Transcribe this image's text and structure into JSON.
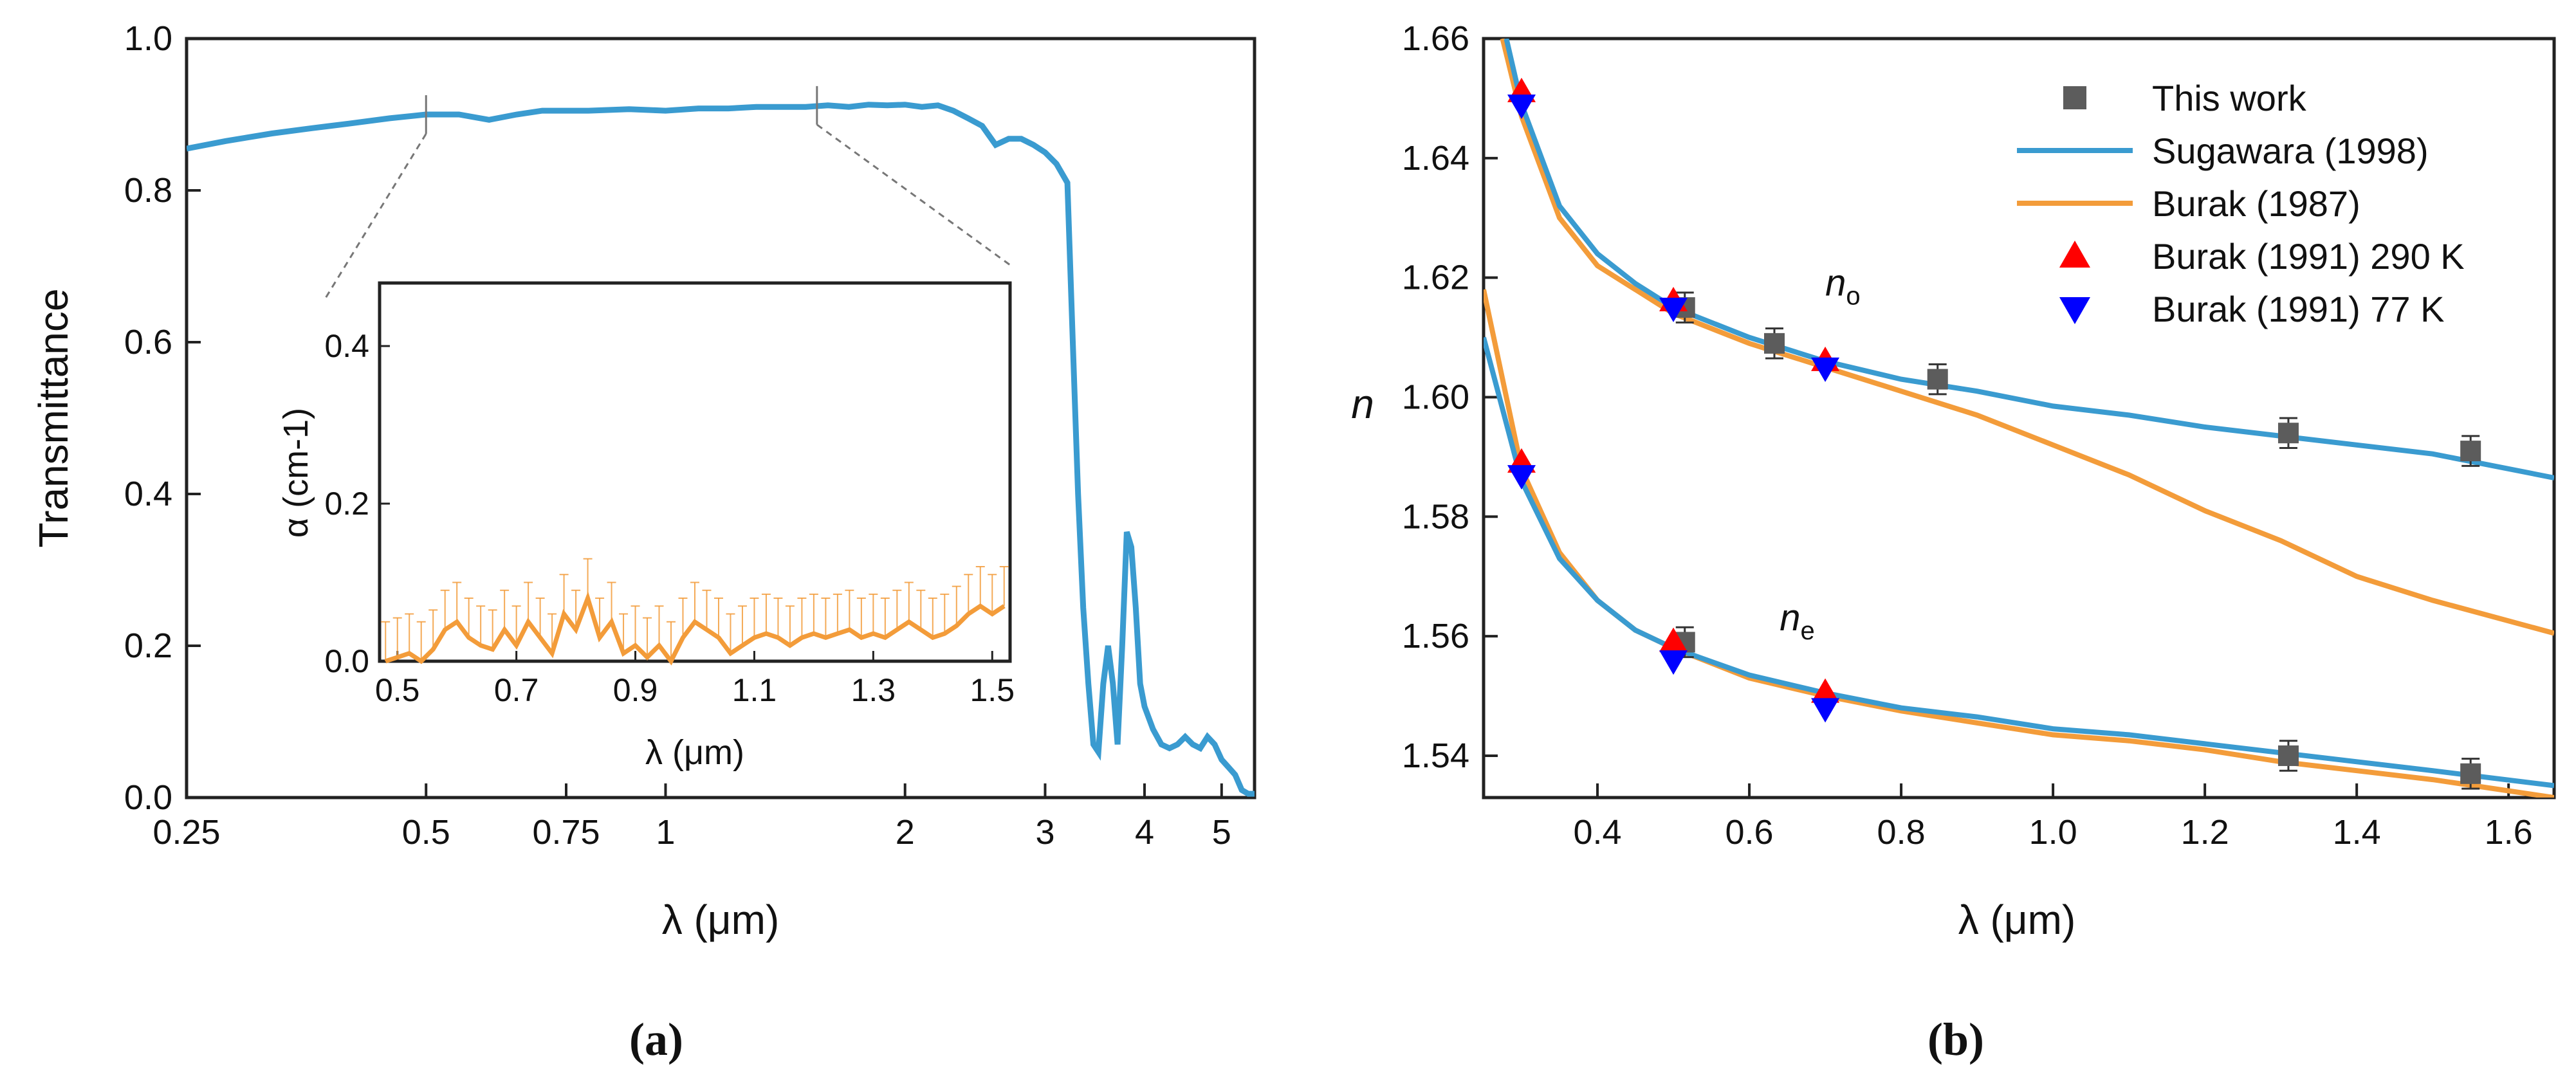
{
  "chart_data": [
    {
      "panel_label": "(a)",
      "type": "line",
      "title": "",
      "xlabel": "λ (μm)",
      "ylabel": "Transmittance",
      "xscale": "log",
      "xlim": [
        0.25,
        5.5
      ],
      "ylim": [
        0,
        1.0
      ],
      "xticks": [
        0.25,
        0.5,
        0.75,
        1,
        2,
        3,
        4,
        5
      ],
      "xtick_labels": [
        "0.25",
        "0.5",
        "0.75",
        "1",
        "2",
        "3",
        "4",
        "5"
      ],
      "yticks": [
        0.0,
        0.2,
        0.4,
        0.6,
        0.8,
        1.0
      ],
      "ytick_labels": [
        "0.0",
        "0.2",
        "0.4",
        "0.6",
        "0.8",
        "1.0"
      ],
      "colors": {
        "line": "#3a9bd0",
        "inset": "#f39c3a"
      },
      "series": [
        {
          "name": "Transmittance",
          "x": [
            0.25,
            0.28,
            0.32,
            0.36,
            0.4,
            0.45,
            0.5,
            0.55,
            0.6,
            0.65,
            0.7,
            0.75,
            0.8,
            0.9,
            1.0,
            1.1,
            1.2,
            1.3,
            1.4,
            1.5,
            1.6,
            1.7,
            1.8,
            1.9,
            2.0,
            2.1,
            2.2,
            2.3,
            2.4,
            2.5,
            2.6,
            2.7,
            2.8,
            2.9,
            3.0,
            3.1,
            3.2,
            3.25,
            3.3,
            3.35,
            3.4,
            3.45,
            3.5,
            3.55,
            3.6,
            3.65,
            3.7,
            3.75,
            3.8,
            3.85,
            3.9,
            3.95,
            4.0,
            4.1,
            4.2,
            4.3,
            4.4,
            4.5,
            4.6,
            4.7,
            4.8,
            4.9,
            5.0,
            5.1,
            5.2,
            5.3,
            5.4,
            5.5
          ],
          "y": [
            0.855,
            0.865,
            0.875,
            0.882,
            0.888,
            0.895,
            0.9,
            0.9,
            0.893,
            0.9,
            0.905,
            0.905,
            0.905,
            0.907,
            0.905,
            0.908,
            0.908,
            0.91,
            0.91,
            0.91,
            0.912,
            0.91,
            0.913,
            0.912,
            0.913,
            0.91,
            0.912,
            0.905,
            0.895,
            0.885,
            0.86,
            0.868,
            0.868,
            0.86,
            0.85,
            0.835,
            0.81,
            0.6,
            0.4,
            0.25,
            0.15,
            0.07,
            0.06,
            0.15,
            0.2,
            0.15,
            0.07,
            0.2,
            0.35,
            0.33,
            0.25,
            0.15,
            0.12,
            0.09,
            0.07,
            0.065,
            0.07,
            0.08,
            0.07,
            0.065,
            0.08,
            0.07,
            0.05,
            0.04,
            0.03,
            0.01,
            0.005,
            0.005
          ]
        }
      ],
      "annotations": [
        {
          "type": "marker",
          "x": 0.5
        },
        {
          "type": "marker",
          "x": 1.55
        }
      ],
      "inset": {
        "type": "line",
        "xlabel": "λ (μm)",
        "ylabel": "α (cm-1)",
        "xlim": [
          0.47,
          1.53
        ],
        "ylim": [
          0,
          0.48
        ],
        "xticks": [
          0.5,
          0.7,
          0.9,
          1.1,
          1.3,
          1.5
        ],
        "xtick_labels": [
          "0.5",
          "0.7",
          "0.9",
          "1.1",
          "1.3",
          "1.5"
        ],
        "yticks": [
          0.0,
          0.2,
          0.4
        ],
        "ytick_labels": [
          "0.0",
          "0.2",
          "0.4"
        ],
        "series": [
          {
            "name": "alpha",
            "x": [
              0.48,
              0.5,
              0.52,
              0.54,
              0.56,
              0.58,
              0.6,
              0.62,
              0.64,
              0.66,
              0.68,
              0.7,
              0.72,
              0.74,
              0.76,
              0.78,
              0.8,
              0.82,
              0.84,
              0.86,
              0.88,
              0.9,
              0.92,
              0.94,
              0.96,
              0.98,
              1.0,
              1.02,
              1.04,
              1.06,
              1.08,
              1.1,
              1.12,
              1.14,
              1.16,
              1.18,
              1.2,
              1.22,
              1.24,
              1.26,
              1.28,
              1.3,
              1.32,
              1.34,
              1.36,
              1.38,
              1.4,
              1.42,
              1.44,
              1.46,
              1.48,
              1.5,
              1.52
            ],
            "y": [
              0.0,
              0.005,
              0.01,
              0.0,
              0.015,
              0.04,
              0.05,
              0.03,
              0.02,
              0.015,
              0.04,
              0.02,
              0.05,
              0.03,
              0.01,
              0.06,
              0.04,
              0.08,
              0.03,
              0.05,
              0.01,
              0.02,
              0.005,
              0.02,
              0.0,
              0.03,
              0.05,
              0.04,
              0.03,
              0.01,
              0.02,
              0.03,
              0.035,
              0.03,
              0.02,
              0.03,
              0.035,
              0.03,
              0.035,
              0.04,
              0.03,
              0.035,
              0.03,
              0.04,
              0.05,
              0.04,
              0.03,
              0.035,
              0.045,
              0.06,
              0.07,
              0.06,
              0.07
            ]
          }
        ],
        "errorbar_upper": [
          0.05,
          0.055,
          0.06,
          0.05,
          0.065,
          0.09,
          0.1,
          0.08,
          0.07,
          0.065,
          0.09,
          0.07,
          0.1,
          0.08,
          0.06,
          0.11,
          0.09,
          0.13,
          0.08,
          0.1,
          0.06,
          0.07,
          0.055,
          0.07,
          0.05,
          0.08,
          0.1,
          0.09,
          0.08,
          0.06,
          0.07,
          0.08,
          0.085,
          0.08,
          0.07,
          0.08,
          0.085,
          0.08,
          0.085,
          0.09,
          0.08,
          0.085,
          0.08,
          0.09,
          0.1,
          0.09,
          0.08,
          0.085,
          0.095,
          0.11,
          0.12,
          0.11,
          0.12
        ]
      }
    },
    {
      "panel_label": "(b)",
      "type": "scatter",
      "title": "",
      "xlabel": "λ (μm)",
      "ylabel": "n",
      "xlim": [
        0.25,
        1.66
      ],
      "ylim": [
        1.533,
        1.66
      ],
      "xticks": [
        0.4,
        0.6,
        0.8,
        1.0,
        1.2,
        1.4,
        1.6
      ],
      "xtick_labels": [
        "0.4",
        "0.6",
        "0.8",
        "1.0",
        "1.2",
        "1.4",
        "1.6"
      ],
      "yticks": [
        1.54,
        1.56,
        1.58,
        1.6,
        1.62,
        1.64,
        1.66
      ],
      "ytick_labels": [
        "1.54",
        "1.56",
        "1.58",
        "1.60",
        "1.62",
        "1.64",
        "1.66"
      ],
      "legend_position": "top-right",
      "legend": [
        "This work",
        "Sugawara (1998)",
        "Burak (1987)",
        "Burak (1991) 290 K",
        "Burak (1991) 77 K"
      ],
      "annotations": [
        {
          "text": "n",
          "sub": "o",
          "x": 0.7,
          "y": 1.617
        },
        {
          "text": "n",
          "sub": "e",
          "x": 0.64,
          "y": 1.561
        }
      ],
      "colors": {
        "this_work": "#5c5c5c",
        "sugawara": "#3a9bd0",
        "burak1987": "#f39c3a",
        "burak290": "#ff0000",
        "burak77": "#0000ff"
      },
      "series": [
        {
          "name": "This work (no)",
          "kind": "points",
          "x": [
            0.515,
            0.633,
            0.848,
            1.31,
            1.55
          ],
          "y": [
            1.615,
            1.609,
            1.603,
            1.594,
            1.591
          ],
          "err": [
            0.0025,
            0.0025,
            0.0025,
            0.0025,
            0.0025
          ]
        },
        {
          "name": "This work (ne)",
          "kind": "points",
          "x": [
            0.515,
            1.31,
            1.55
          ],
          "y": [
            1.559,
            1.54,
            1.537
          ],
          "err": [
            0.0025,
            0.0025,
            0.0025
          ]
        },
        {
          "name": "Sugawara (1998) no",
          "kind": "line",
          "x": [
            0.28,
            0.3,
            0.35,
            0.4,
            0.45,
            0.5,
            0.6,
            0.7,
            0.8,
            0.9,
            1.0,
            1.1,
            1.2,
            1.3,
            1.4,
            1.5,
            1.66
          ],
          "y": [
            1.66,
            1.649,
            1.632,
            1.624,
            1.619,
            1.615,
            1.61,
            1.606,
            1.603,
            1.601,
            1.5985,
            1.597,
            1.595,
            1.5935,
            1.592,
            1.5905,
            1.5865
          ]
        },
        {
          "name": "Burak (1987) no",
          "kind": "line",
          "x": [
            0.275,
            0.3,
            0.35,
            0.4,
            0.45,
            0.5,
            0.6,
            0.7,
            0.8,
            0.9,
            1.0,
            1.1,
            1.2,
            1.3,
            1.4,
            1.5,
            1.66
          ],
          "y": [
            1.66,
            1.647,
            1.63,
            1.622,
            1.618,
            1.614,
            1.609,
            1.605,
            1.601,
            1.597,
            1.592,
            1.587,
            1.581,
            1.576,
            1.57,
            1.566,
            1.5605
          ]
        },
        {
          "name": "Sugawara (1998) ne",
          "kind": "line",
          "x": [
            0.25,
            0.3,
            0.35,
            0.4,
            0.45,
            0.5,
            0.6,
            0.7,
            0.8,
            0.9,
            1.0,
            1.1,
            1.2,
            1.3,
            1.4,
            1.5,
            1.66
          ],
          "y": [
            1.61,
            1.586,
            1.573,
            1.566,
            1.561,
            1.558,
            1.5535,
            1.5505,
            1.548,
            1.5465,
            1.5445,
            1.5435,
            1.542,
            1.5405,
            1.539,
            1.5375,
            1.535
          ]
        },
        {
          "name": "Burak (1987) ne",
          "kind": "line",
          "x": [
            0.25,
            0.3,
            0.35,
            0.4,
            0.45,
            0.5,
            0.6,
            0.7,
            0.8,
            0.9,
            1.0,
            1.1,
            1.2,
            1.3,
            1.4,
            1.5,
            1.66
          ],
          "y": [
            1.618,
            1.588,
            1.574,
            1.566,
            1.561,
            1.558,
            1.553,
            1.55,
            1.5475,
            1.5455,
            1.5435,
            1.5425,
            1.541,
            1.539,
            1.5375,
            1.536,
            1.533
          ]
        },
        {
          "name": "Burak (1991) 290 K",
          "kind": "triangle-up",
          "x": [
            0.3,
            0.5,
            0.7,
            0.3,
            0.5,
            0.7
          ],
          "y": [
            1.651,
            1.616,
            1.606,
            1.589,
            1.559,
            1.5505
          ]
        },
        {
          "name": "Burak (1991) 77 K",
          "kind": "triangle-down",
          "x": [
            0.3,
            0.5,
            0.7,
            0.3,
            0.5,
            0.7
          ],
          "y": [
            1.649,
            1.615,
            1.605,
            1.587,
            1.556,
            1.548
          ]
        }
      ]
    }
  ]
}
